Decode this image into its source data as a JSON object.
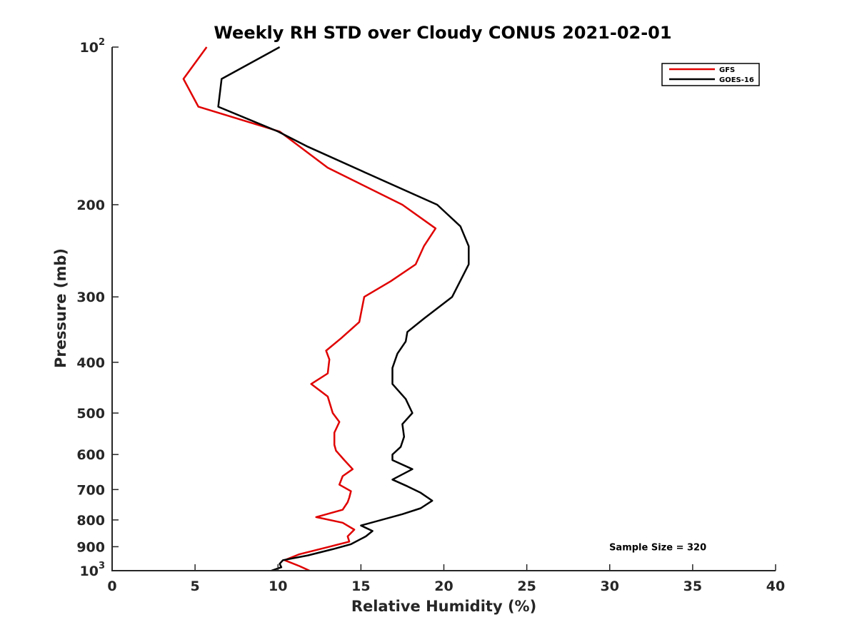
{
  "chart_data": {
    "type": "line",
    "title": "Weekly RH STD over Cloudy CONUS 2021-02-01",
    "xlabel": "Relative Humidity (%)",
    "ylabel": "Pressure (mb)",
    "xlim": [
      0,
      40
    ],
    "ylim": [
      100,
      1000
    ],
    "y_scale": "log",
    "y_reversed": true,
    "grid": false,
    "legend_position": "top-right",
    "x_ticks": [
      0,
      5,
      10,
      15,
      20,
      25,
      30,
      35,
      40
    ],
    "x_tick_labels": [
      "0",
      "5",
      "10",
      "15",
      "20",
      "25",
      "30",
      "35",
      "40"
    ],
    "y_ticks": [
      100,
      200,
      300,
      400,
      500,
      600,
      700,
      800,
      900,
      1000
    ],
    "y_tick_labels": [
      {
        "base": "10",
        "exp": "2"
      },
      {
        "base": "200",
        "exp": ""
      },
      {
        "base": "300",
        "exp": ""
      },
      {
        "base": "400",
        "exp": ""
      },
      {
        "base": "500",
        "exp": ""
      },
      {
        "base": "600",
        "exp": ""
      },
      {
        "base": "700",
        "exp": ""
      },
      {
        "base": "800",
        "exp": ""
      },
      {
        "base": "900",
        "exp": ""
      },
      {
        "base": "10",
        "exp": "3"
      }
    ],
    "annotation": "Sample Size = 320",
    "series": [
      {
        "name": "GFS",
        "color": "#e00000",
        "points": [
          [
            5.7,
            100
          ],
          [
            4.3,
            115
          ],
          [
            5.2,
            130
          ],
          [
            10.1,
            145
          ],
          [
            13.0,
            170
          ],
          [
            17.5,
            200
          ],
          [
            19.5,
            222
          ],
          [
            18.8,
            240
          ],
          [
            18.3,
            260
          ],
          [
            16.8,
            280
          ],
          [
            15.2,
            300
          ],
          [
            14.9,
            335
          ],
          [
            13.8,
            360
          ],
          [
            12.9,
            380
          ],
          [
            13.1,
            395
          ],
          [
            13.0,
            420
          ],
          [
            12.0,
            440
          ],
          [
            13.0,
            465
          ],
          [
            13.3,
            500
          ],
          [
            13.7,
            520
          ],
          [
            13.4,
            545
          ],
          [
            13.4,
            575
          ],
          [
            13.5,
            590
          ],
          [
            14.0,
            615
          ],
          [
            14.5,
            640
          ],
          [
            13.9,
            660
          ],
          [
            13.7,
            685
          ],
          [
            14.4,
            705
          ],
          [
            14.3,
            725
          ],
          [
            14.2,
            740
          ],
          [
            13.9,
            765
          ],
          [
            12.3,
            790
          ],
          [
            13.9,
            810
          ],
          [
            14.6,
            835
          ],
          [
            14.2,
            860
          ],
          [
            14.3,
            880
          ],
          [
            13.1,
            900
          ],
          [
            11.3,
            930
          ],
          [
            10.4,
            955
          ],
          [
            11.3,
            980
          ],
          [
            11.9,
            1000
          ]
        ]
      },
      {
        "name": "GOES-16",
        "color": "#000000",
        "points": [
          [
            10.1,
            100
          ],
          [
            6.6,
            115
          ],
          [
            6.4,
            130
          ],
          [
            10.0,
            145
          ],
          [
            11.8,
            155
          ],
          [
            15.5,
            175
          ],
          [
            19.6,
            200
          ],
          [
            21.0,
            220
          ],
          [
            21.5,
            240
          ],
          [
            21.5,
            260
          ],
          [
            20.5,
            300
          ],
          [
            18.8,
            330
          ],
          [
            17.8,
            350
          ],
          [
            17.7,
            365
          ],
          [
            17.2,
            385
          ],
          [
            16.9,
            410
          ],
          [
            16.9,
            440
          ],
          [
            17.7,
            470
          ],
          [
            18.1,
            500
          ],
          [
            17.5,
            525
          ],
          [
            17.6,
            555
          ],
          [
            17.4,
            580
          ],
          [
            16.9,
            600
          ],
          [
            16.9,
            615
          ],
          [
            18.1,
            640
          ],
          [
            16.9,
            670
          ],
          [
            17.8,
            690
          ],
          [
            18.6,
            710
          ],
          [
            19.3,
            735
          ],
          [
            18.6,
            760
          ],
          [
            17.5,
            780
          ],
          [
            15.0,
            820
          ],
          [
            15.7,
            840
          ],
          [
            15.3,
            860
          ],
          [
            14.4,
            890
          ],
          [
            13.3,
            910
          ],
          [
            11.8,
            935
          ],
          [
            10.3,
            955
          ],
          [
            10.1,
            970
          ],
          [
            10.2,
            985
          ],
          [
            9.6,
            1000
          ]
        ]
      }
    ]
  }
}
